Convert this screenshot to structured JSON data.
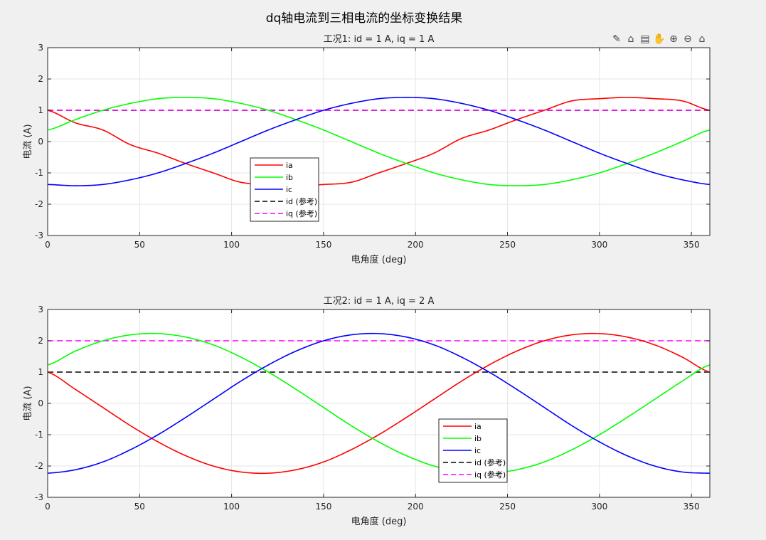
{
  "figure_title": "dq轴电流到三相电流的坐标变换结果",
  "toolbar": {
    "items": [
      {
        "name": "export-icon",
        "glyph": "✎"
      },
      {
        "name": "brush-icon",
        "glyph": "⌂"
      },
      {
        "name": "datatip-icon",
        "glyph": "▤"
      },
      {
        "name": "pan-icon",
        "glyph": "✋"
      },
      {
        "name": "zoom-in-icon",
        "glyph": "⊕"
      },
      {
        "name": "zoom-out-icon",
        "glyph": "⊖"
      },
      {
        "name": "home-icon",
        "glyph": "⌂"
      }
    ]
  },
  "colors": {
    "ia": "#ff0000",
    "ib": "#00ff00",
    "ic": "#0000ff",
    "id": "#000000",
    "iq": "#ff00ff",
    "grid": "#e6e6e6",
    "axis": "#262626",
    "plot_bg": "#ffffff"
  },
  "chart_data": [
    {
      "type": "line",
      "title": "工况1: id = 1 A,  iq = 1 A",
      "xlabel": "电角度 (deg)",
      "ylabel": "电流 (A)",
      "xlim": [
        0,
        360
      ],
      "ylim": [
        -3,
        3
      ],
      "xticks": [
        0,
        50,
        100,
        150,
        200,
        250,
        300,
        350
      ],
      "yticks": [
        -3,
        -2,
        -1,
        0,
        1,
        2,
        3
      ],
      "xtick_labels": [
        "0",
        "50",
        "100",
        "150",
        "200",
        "250",
        "300",
        "350"
      ],
      "ytick_labels": [
        "-3",
        "-2",
        "-1",
        "0",
        "1",
        "2",
        "3"
      ],
      "grid": true,
      "legend_position": "lower-left-center",
      "id": 1,
      "iq": 1,
      "x": [
        0,
        15,
        30,
        45,
        60,
        75,
        90,
        105,
        120,
        135,
        150,
        165,
        180,
        195,
        210,
        225,
        240,
        255,
        270,
        285,
        300,
        315,
        330,
        345,
        360
      ],
      "series": [
        {
          "name": "ia",
          "style": "solid",
          "values": [
            1.0,
            0.6,
            0.37,
            -0.1,
            -0.37,
            -0.7,
            -1.0,
            -1.3,
            -1.37,
            -1.41,
            -1.37,
            -1.3,
            -1.0,
            -0.7,
            -0.37,
            0.1,
            0.37,
            0.7,
            1.0,
            1.3,
            1.37,
            1.41,
            1.37,
            1.3,
            1.0
          ]
        },
        {
          "name": "ib",
          "style": "solid",
          "values": [
            0.37,
            0.7,
            1.0,
            1.22,
            1.37,
            1.41,
            1.37,
            1.22,
            1.0,
            0.7,
            0.37,
            0.0,
            -0.37,
            -0.7,
            -1.0,
            -1.22,
            -1.37,
            -1.41,
            -1.37,
            -1.22,
            -1.0,
            -0.7,
            -0.37,
            0.0,
            0.37
          ]
        },
        {
          "name": "ic",
          "style": "solid",
          "values": [
            -1.37,
            -1.41,
            -1.37,
            -1.22,
            -1.0,
            -0.7,
            -0.37,
            0.0,
            0.37,
            0.7,
            1.0,
            1.22,
            1.37,
            1.41,
            1.37,
            1.22,
            1.0,
            0.7,
            0.37,
            0.0,
            -0.37,
            -0.7,
            -1.0,
            -1.22,
            -1.37
          ]
        },
        {
          "name": "id (参考)",
          "style": "dashed",
          "values": [
            1,
            1,
            1,
            1,
            1,
            1,
            1,
            1,
            1,
            1,
            1,
            1,
            1,
            1,
            1,
            1,
            1,
            1,
            1,
            1,
            1,
            1,
            1,
            1,
            1
          ]
        },
        {
          "name": "iq (参考)",
          "style": "dashed",
          "values": [
            1,
            1,
            1,
            1,
            1,
            1,
            1,
            1,
            1,
            1,
            1,
            1,
            1,
            1,
            1,
            1,
            1,
            1,
            1,
            1,
            1,
            1,
            1,
            1,
            1
          ]
        }
      ]
    },
    {
      "type": "line",
      "title": "工况2: id = 1 A,  iq = 2 A",
      "xlabel": "电角度 (deg)",
      "ylabel": "电流 (A)",
      "xlim": [
        0,
        360
      ],
      "ylim": [
        -3,
        3
      ],
      "xticks": [
        0,
        50,
        100,
        150,
        200,
        250,
        300,
        350
      ],
      "yticks": [
        -3,
        -2,
        -1,
        0,
        1,
        2,
        3
      ],
      "xtick_labels": [
        "0",
        "50",
        "100",
        "150",
        "200",
        "250",
        "300",
        "350"
      ],
      "ytick_labels": [
        "-3",
        "-2",
        "-1",
        "0",
        "1",
        "2",
        "3"
      ],
      "grid": true,
      "legend_position": "lower-center-right",
      "id": 1,
      "iq": 2,
      "x": [
        0,
        15,
        30,
        45,
        60,
        75,
        90,
        105,
        120,
        135,
        150,
        165,
        180,
        195,
        210,
        225,
        240,
        255,
        270,
        285,
        300,
        315,
        330,
        345,
        360
      ],
      "series": [
        {
          "name": "ia",
          "style": "solid",
          "values": [
            1.0,
            0.45,
            -0.13,
            -0.71,
            -1.23,
            -1.67,
            -2.0,
            -2.19,
            -2.23,
            -2.12,
            -1.87,
            -1.48,
            -1.0,
            -0.45,
            0.13,
            0.71,
            1.23,
            1.67,
            2.0,
            2.19,
            2.23,
            2.12,
            1.87,
            1.48,
            1.0
          ]
        },
        {
          "name": "ib",
          "style": "solid",
          "values": [
            1.23,
            1.67,
            2.0,
            2.19,
            2.23,
            2.12,
            1.87,
            1.48,
            1.0,
            0.45,
            -0.13,
            -0.71,
            -1.23,
            -1.67,
            -2.0,
            -2.19,
            -2.23,
            -2.12,
            -1.87,
            -1.48,
            -1.0,
            -0.45,
            0.13,
            0.71,
            1.23
          ]
        },
        {
          "name": "ic",
          "style": "solid",
          "values": [
            -2.23,
            -2.12,
            -1.87,
            -1.48,
            -1.0,
            -0.45,
            0.13,
            0.71,
            1.23,
            1.67,
            2.0,
            2.19,
            2.23,
            2.12,
            1.87,
            1.48,
            1.0,
            0.45,
            -0.13,
            -0.71,
            -1.23,
            -1.67,
            -2.0,
            -2.19,
            -2.23
          ]
        },
        {
          "name": "id (参考)",
          "style": "dashed",
          "values": [
            1,
            1,
            1,
            1,
            1,
            1,
            1,
            1,
            1,
            1,
            1,
            1,
            1,
            1,
            1,
            1,
            1,
            1,
            1,
            1,
            1,
            1,
            1,
            1,
            1
          ]
        },
        {
          "name": "iq (参考)",
          "style": "dashed",
          "values": [
            2,
            2,
            2,
            2,
            2,
            2,
            2,
            2,
            2,
            2,
            2,
            2,
            2,
            2,
            2,
            2,
            2,
            2,
            2,
            2,
            2,
            2,
            2,
            2,
            2
          ]
        }
      ]
    }
  ]
}
